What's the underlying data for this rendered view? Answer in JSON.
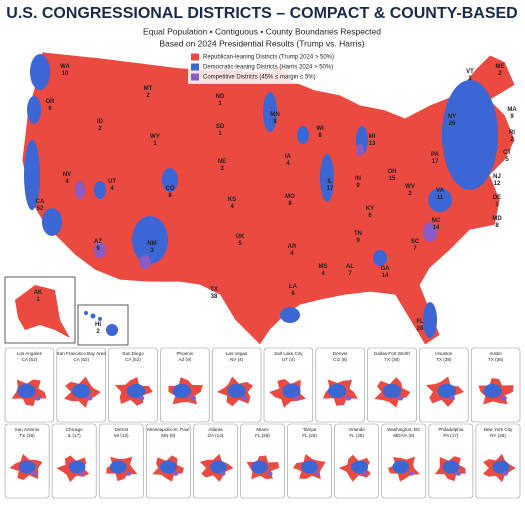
{
  "title": "U.S. CONGRESSIONAL DISTRICTS – COMPACT & COUNTY-BASED",
  "subtitle": [
    "Equal Population • Contiguous • County Boundaries Respected",
    "Based on 2024 Presidential Results (Trump vs. Harris)"
  ],
  "legend": [
    {
      "label": "Republican-leaning Districts (Trump 2024 > 50%)",
      "color": "#ea4a40"
    },
    {
      "label": "Democratic-leaning Districts (Harris 2024 > 50%)",
      "color": "#3b66d4"
    },
    {
      "label": "Competitive Districts (45% ≤ margin ≤ 5%)",
      "color": "#8a5cc6"
    }
  ],
  "states": [
    {
      "abbr": "WA",
      "districts": 10
    },
    {
      "abbr": "OR",
      "districts": 6
    },
    {
      "abbr": "CA",
      "districts": 52
    },
    {
      "abbr": "NV",
      "districts": 4
    },
    {
      "abbr": "ID",
      "districts": 2
    },
    {
      "abbr": "MT",
      "districts": 2
    },
    {
      "abbr": "WY",
      "districts": 1
    },
    {
      "abbr": "UT",
      "districts": 4
    },
    {
      "abbr": "AZ",
      "districts": 9
    },
    {
      "abbr": "CO",
      "districts": 8
    },
    {
      "abbr": "NM",
      "districts": 3
    },
    {
      "abbr": "ND",
      "districts": 1
    },
    {
      "abbr": "SD",
      "districts": 1
    },
    {
      "abbr": "NE",
      "districts": 3
    },
    {
      "abbr": "KS",
      "districts": 4
    },
    {
      "abbr": "OK",
      "districts": 5
    },
    {
      "abbr": "TX",
      "districts": 38
    },
    {
      "abbr": "MN",
      "districts": 8
    },
    {
      "abbr": "IA",
      "districts": 4
    },
    {
      "abbr": "MO",
      "districts": 8
    },
    {
      "abbr": "AR",
      "districts": 4
    },
    {
      "abbr": "LA",
      "districts": 6
    },
    {
      "abbr": "WI",
      "districts": 8
    },
    {
      "abbr": "IL",
      "districts": 17
    },
    {
      "abbr": "MI",
      "districts": 13
    },
    {
      "abbr": "IN",
      "districts": 9
    },
    {
      "abbr": "OH",
      "districts": 15
    },
    {
      "abbr": "KY",
      "districts": 6
    },
    {
      "abbr": "TN",
      "districts": 9
    },
    {
      "abbr": "MS",
      "districts": 4
    },
    {
      "abbr": "AL",
      "districts": 7
    },
    {
      "abbr": "GA",
      "districts": 14
    },
    {
      "abbr": "FL",
      "districts": 28
    },
    {
      "abbr": "SC",
      "districts": 7
    },
    {
      "abbr": "NC",
      "districts": 14
    },
    {
      "abbr": "VA",
      "districts": 11
    },
    {
      "abbr": "WV",
      "districts": 2
    },
    {
      "abbr": "PA",
      "districts": 17
    },
    {
      "abbr": "NY",
      "districts": 26
    },
    {
      "abbr": "VT",
      "districts": 1
    },
    {
      "abbr": "ME",
      "districts": 2
    },
    {
      "abbr": "MA",
      "districts": 9
    },
    {
      "abbr": "RI",
      "districts": 2
    },
    {
      "abbr": "CT",
      "districts": 5
    },
    {
      "abbr": "NJ",
      "districts": 12
    },
    {
      "abbr": "DE",
      "districts": 1
    },
    {
      "abbr": "MD",
      "districts": 8
    },
    {
      "abbr": "AK",
      "districts": 1
    },
    {
      "abbr": "HI",
      "districts": 2
    }
  ],
  "insets": [
    {
      "city": "Los Angeles",
      "detail": "CA (52)"
    },
    {
      "city": "San Francisco Bay Area",
      "detail": "CA (52)"
    },
    {
      "city": "San Diego",
      "detail": "CA (52)"
    },
    {
      "city": "Phoenix",
      "detail": "AZ (9)"
    },
    {
      "city": "Las Vegas",
      "detail": "NV (4)"
    },
    {
      "city": "Salt Lake City",
      "detail": "UT (4)"
    },
    {
      "city": "Denver",
      "detail": "CO (8)"
    },
    {
      "city": "Dallas-Fort Worth",
      "detail": "TX (38)"
    },
    {
      "city": "Houston",
      "detail": "TX (38)"
    },
    {
      "city": "Austin",
      "detail": "TX (38)"
    },
    {
      "city": "San Antonio",
      "detail": "TX (38)"
    },
    {
      "city": "Chicago",
      "detail": "IL (17)"
    },
    {
      "city": "Detroit",
      "detail": "MI (13)"
    },
    {
      "city": "Minneapolis-St. Paul",
      "detail": "MN (8)"
    },
    {
      "city": "Atlanta",
      "detail": "GA (14)"
    },
    {
      "city": "Miami",
      "detail": "FL (28)"
    },
    {
      "city": "Tampa",
      "detail": "FL (28)"
    },
    {
      "city": "Orlando",
      "detail": "FL (28)"
    },
    {
      "city": "Washington, DC",
      "detail": "MD/VA (8)"
    },
    {
      "city": "Philadelphia",
      "detail": "PA (17)"
    },
    {
      "city": "New York City",
      "detail": "NY (26)"
    }
  ]
}
